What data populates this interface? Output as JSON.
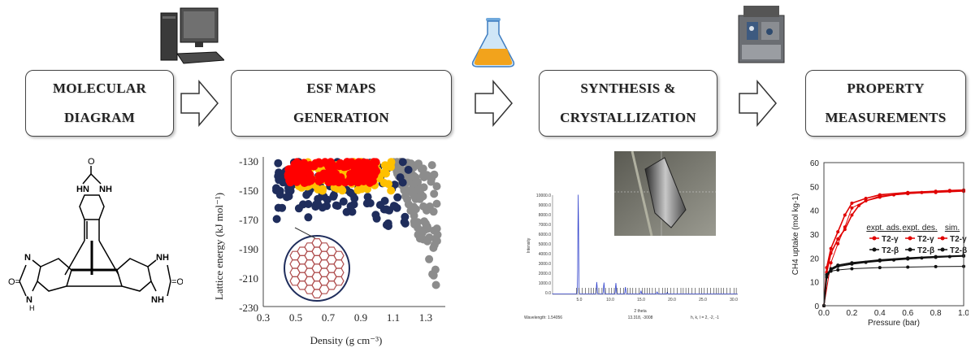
{
  "steps": [
    {
      "line1": "MOLECULAR",
      "line2": "DIAGRAM"
    },
    {
      "line1": "ESF MAPS",
      "line2": "GENERATION"
    },
    {
      "line1": "SYNTHESIS &",
      "line2": "CRYSTALLIZATION"
    },
    {
      "line1": "PROPERTY",
      "line2": "MEASUREMENTS"
    }
  ],
  "icons": [
    "computer-icon",
    "flask-icon",
    "instrument-icon"
  ],
  "esf_plot": {
    "ylabel": "Lattice energy (kJ mol⁻¹)",
    "xlabel": "Density (g cm⁻³)",
    "yticks": [
      "-130",
      "-150",
      "-170",
      "-190",
      "-210",
      "-230"
    ],
    "xticks": [
      "0.3",
      "0.5",
      "0.7",
      "0.9",
      "1.1",
      "1.3"
    ],
    "colors": {
      "red": "#ff0000",
      "gold": "#ffc000",
      "navy": "#1f2d5c",
      "gray": "#8c8c8c"
    }
  },
  "pxrd": {
    "yticks": [
      "10000.0",
      "9000.0",
      "8000.0",
      "7000.0",
      "6000.0",
      "5000.0",
      "4000.0",
      "3000.0",
      "2000.0",
      "1000.0",
      "0.0"
    ],
    "xticks": [
      "5.0",
      "10.0",
      "15.0",
      "20.0",
      "25.0",
      "30.0"
    ],
    "ylabel": "Intensity",
    "xlabel": "2 theta",
    "wavelength": "Wavelength: 1.54056",
    "coords": "13.318, -3008",
    "hkl": "h, k, l = 2, -2, -1"
  },
  "chart_data": {
    "type": "line",
    "xlabel": "Pressure (bar)",
    "ylabel": "CH4 uptake (mol kg-1)",
    "xlim": [
      0,
      1.0
    ],
    "ylim": [
      0,
      60
    ],
    "xticks": [
      "0.0",
      "0.2",
      "0.4",
      "0.6",
      "0.8",
      "1.0"
    ],
    "yticks": [
      "0",
      "10",
      "20",
      "30",
      "40",
      "50",
      "60"
    ],
    "legend_headers": [
      "expt. ads.",
      "expt. des.",
      "sim."
    ],
    "legend_rows": [
      "T2-γ",
      "T2-β"
    ],
    "series": [
      {
        "name": "T2-γ expt. ads.",
        "color": "#e00000",
        "x": [
          0,
          0.02,
          0.05,
          0.1,
          0.15,
          0.2,
          0.25,
          0.3,
          0.4,
          0.5,
          0.6,
          0.7,
          0.8,
          0.9,
          1.0
        ],
        "y": [
          0,
          14,
          22,
          28,
          32,
          38,
          42,
          44,
          45.5,
          46.5,
          47,
          47.5,
          47.8,
          48,
          48.2
        ]
      },
      {
        "name": "T2-γ expt. des.",
        "color": "#e00000",
        "x": [
          1.0,
          0.9,
          0.8,
          0.6,
          0.4,
          0.3,
          0.2,
          0.15,
          0.1,
          0.05,
          0.02,
          0
        ],
        "y": [
          48.5,
          48.3,
          48,
          47.5,
          46.5,
          45,
          43,
          38,
          31,
          24,
          16,
          0
        ]
      },
      {
        "name": "T2-γ sim.",
        "color": "#e00000",
        "x": [
          0,
          0.05,
          0.1,
          0.15,
          0.2,
          0.3,
          0.4,
          0.6,
          0.8,
          1.0
        ],
        "y": [
          0,
          18,
          26,
          33,
          41,
          44,
          46,
          47,
          47.5,
          48
        ]
      },
      {
        "name": "T2-β expt. ads.",
        "color": "#111111",
        "x": [
          0,
          0.02,
          0.05,
          0.1,
          0.2,
          0.3,
          0.4,
          0.5,
          0.6,
          0.7,
          0.8,
          0.9,
          1.0
        ],
        "y": [
          0,
          12,
          15,
          16.5,
          17.5,
          18.2,
          18.8,
          19.2,
          19.6,
          20,
          20.3,
          20.6,
          20.8
        ]
      },
      {
        "name": "T2-β expt. des.",
        "color": "#111111",
        "x": [
          1.0,
          0.8,
          0.6,
          0.4,
          0.2,
          0.1,
          0.05,
          0.02,
          0
        ],
        "y": [
          21,
          20.6,
          20,
          19.2,
          18,
          17,
          15.5,
          13,
          0
        ]
      },
      {
        "name": "T2-β sim.",
        "color": "#111111",
        "x": [
          0,
          0.02,
          0.05,
          0.1,
          0.2,
          0.4,
          0.6,
          0.8,
          1.0
        ],
        "y": [
          0,
          13,
          14.5,
          15,
          15.5,
          16,
          16.2,
          16.4,
          16.5
        ]
      }
    ]
  }
}
